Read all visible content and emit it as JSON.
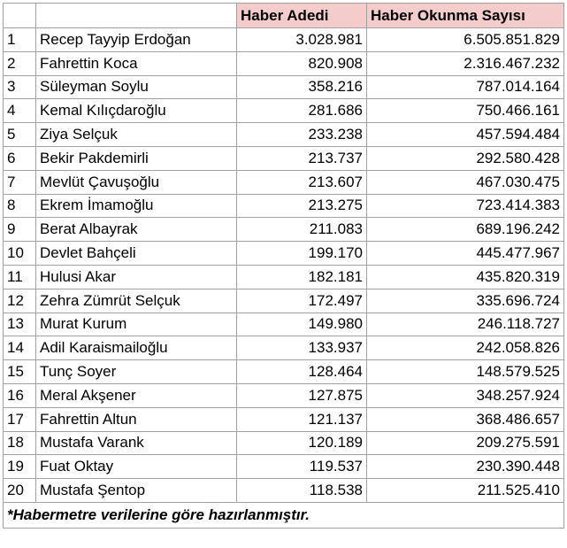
{
  "table": {
    "header": [
      "Haber Adedi",
      "Haber Okunma Sayısı"
    ],
    "rows": [
      [
        1,
        "Recep Tayyip Erdoğan",
        "3.028.981",
        "6.505.851.829"
      ],
      [
        2,
        "Fahrettin Koca",
        "820.908",
        "2.316.467.232"
      ],
      [
        3,
        "Süleyman Soylu",
        "358.216",
        "787.014.164"
      ],
      [
        4,
        "Kemal Kılıçdaroğlu",
        "281.686",
        "750.466.161"
      ],
      [
        5,
        "Ziya Selçuk",
        "233.238",
        "457.594.484"
      ],
      [
        6,
        "Bekir Pakdemirli",
        "213.737",
        "292.580.428"
      ],
      [
        7,
        "Mevlüt Çavuşoğlu",
        "213.607",
        "467.030.475"
      ],
      [
        8,
        "Ekrem İmamoğlu",
        "213.275",
        "723.414.383"
      ],
      [
        9,
        "Berat Albayrak",
        "211.083",
        "689.196.242"
      ],
      [
        10,
        "Devlet Bahçeli",
        "199.170",
        "445.477.967"
      ],
      [
        11,
        "Hulusi Akar",
        "182.181",
        "435.820.319"
      ],
      [
        12,
        "Zehra Zümrüt Selçuk",
        "172.497",
        "335.696.724"
      ],
      [
        13,
        "Murat Kurum",
        "149.980",
        "246.118.727"
      ],
      [
        14,
        "Adil Karaismailoğlu",
        "133.937",
        "242.058.826"
      ],
      [
        15,
        "Tunç Soyer",
        "128.464",
        "148.579.525"
      ],
      [
        16,
        "Meral Akşener",
        "127.875",
        "348.257.924"
      ],
      [
        17,
        "Fahrettin Altun",
        "121.137",
        "368.486.657"
      ],
      [
        18,
        "Mustafa Varank",
        "120.189",
        "209.275.591"
      ],
      [
        19,
        "Fuat Oktay",
        "119.537",
        "230.390.448"
      ],
      [
        20,
        "Mustafa Şentop",
        "118.538",
        "211.525.410"
      ]
    ],
    "footnote": "*Habermetre verilerine göre hazırlanmıştır."
  }
}
